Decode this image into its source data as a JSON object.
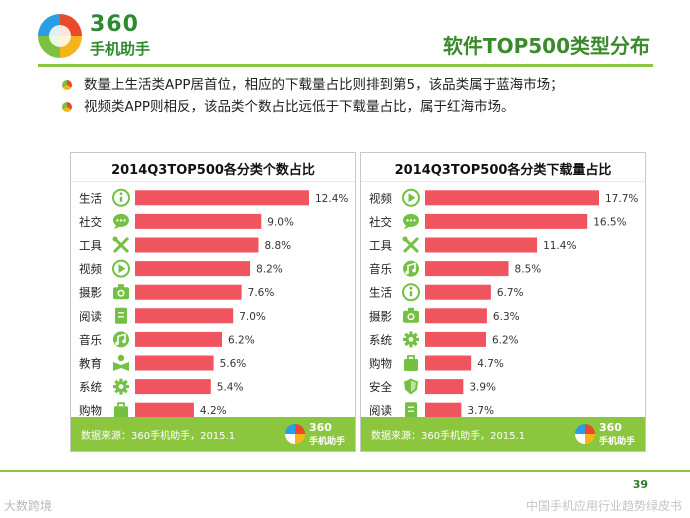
{
  "logo": {
    "num": "360",
    "text": "手机助手"
  },
  "title": "软件TOP500类型分布",
  "bullets": [
    "数量上生活类APP居首位，相应的下载量占比则排到第5，该品类属于蓝海市场；",
    "视频类APP则相反，该品类个数占比远低于下载量占比，属于红海市场。"
  ],
  "colors": {
    "bar": "#f0545e",
    "icon": "#74c043",
    "accent": "#8cc63f"
  },
  "chart_data": [
    {
      "type": "bar",
      "orientation": "horizontal",
      "title": "2014Q3TOP500各分类个数占比",
      "categories": [
        "生活",
        "社交",
        "工具",
        "视频",
        "摄影",
        "阅读",
        "音乐",
        "教育",
        "系统",
        "购物"
      ],
      "icons": [
        "info-icon",
        "chat-bubble-icon",
        "tools-icon",
        "play-icon",
        "camera-icon",
        "book-icon",
        "music-icon",
        "education-icon",
        "gear-icon",
        "shopping-bag-icon"
      ],
      "values": [
        12.4,
        9.0,
        8.8,
        8.2,
        7.6,
        7.0,
        6.2,
        5.6,
        5.4,
        4.2
      ],
      "labels": [
        "12.4%",
        "9.0%",
        "8.8%",
        "8.2%",
        "7.6%",
        "7.0%",
        "6.2%",
        "5.6%",
        "5.4%",
        "4.2%"
      ],
      "unit": "%",
      "xlim": [
        0,
        12.4
      ],
      "source": "数据来源：360手机助手，2015.1"
    },
    {
      "type": "bar",
      "orientation": "horizontal",
      "title": "2014Q3TOP500各分类下载量占比",
      "categories": [
        "视频",
        "社交",
        "工具",
        "音乐",
        "生活",
        "摄影",
        "系统",
        "购物",
        "安全",
        "阅读"
      ],
      "icons": [
        "play-icon",
        "chat-bubble-icon",
        "tools-icon",
        "music-icon",
        "info-icon",
        "camera-icon",
        "gear-icon",
        "shopping-bag-icon",
        "shield-icon",
        "book-icon"
      ],
      "values": [
        17.7,
        16.5,
        11.4,
        8.5,
        6.7,
        6.3,
        6.2,
        4.7,
        3.9,
        3.7
      ],
      "labels": [
        "17.7%",
        "16.5%",
        "11.4%",
        "8.5%",
        "6.7%",
        "6.3%",
        "6.2%",
        "4.7%",
        "3.9%",
        "3.7%"
      ],
      "unit": "%",
      "xlim": [
        0,
        17.7
      ],
      "source": "数据来源：360手机助手，2015.1"
    }
  ],
  "page_number": "39",
  "watermark_left": "大数跨境",
  "watermark_right": "中国手机应用行业趋势绿皮书"
}
